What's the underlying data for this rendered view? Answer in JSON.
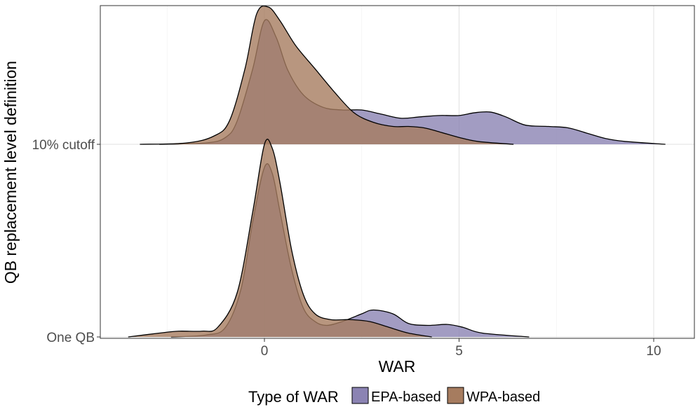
{
  "chart_data": {
    "type": "ridgeline-density",
    "title": "",
    "xlabel": "WAR",
    "ylabel": "QB replacement level definition",
    "xlim": [
      -4.1,
      11.2
    ],
    "x_ticks": [
      0,
      5,
      10
    ],
    "grid": true,
    "rows": [
      "One QB",
      "10% cutoff"
    ],
    "legend": {
      "title": "Type of WAR",
      "position": "bottom",
      "entries": [
        {
          "label": "EPA-based",
          "color": "#8b83b3"
        },
        {
          "label": "WPA-based",
          "color": "#a67c5f"
        }
      ]
    },
    "series": [
      {
        "name": "EPA-based",
        "row": "10% cutoff",
        "color": "#8b83b3",
        "points": [
          [
            -2.7,
            0
          ],
          [
            -1.5,
            0.01
          ],
          [
            -1.0,
            0.05
          ],
          [
            -0.7,
            0.17
          ],
          [
            -0.3,
            0.55
          ],
          [
            0.0,
            0.9
          ],
          [
            0.3,
            0.78
          ],
          [
            0.6,
            0.54
          ],
          [
            1.0,
            0.36
          ],
          [
            1.5,
            0.27
          ],
          [
            2.0,
            0.25
          ],
          [
            2.5,
            0.25
          ],
          [
            3.0,
            0.22
          ],
          [
            3.5,
            0.19
          ],
          [
            4.0,
            0.2
          ],
          [
            4.5,
            0.21
          ],
          [
            5.0,
            0.21
          ],
          [
            5.4,
            0.23
          ],
          [
            5.8,
            0.235
          ],
          [
            6.2,
            0.2
          ],
          [
            6.7,
            0.14
          ],
          [
            7.3,
            0.13
          ],
          [
            7.8,
            0.12
          ],
          [
            8.3,
            0.08
          ],
          [
            8.8,
            0.04
          ],
          [
            9.3,
            0.02
          ],
          [
            10.3,
            0
          ]
        ]
      },
      {
        "name": "WPA-based",
        "row": "10% cutoff",
        "color": "#a67c5f",
        "points": [
          [
            -3.2,
            0
          ],
          [
            -2.0,
            0.01
          ],
          [
            -1.3,
            0.06
          ],
          [
            -0.9,
            0.17
          ],
          [
            -0.5,
            0.55
          ],
          [
            -0.2,
            0.95
          ],
          [
            0.1,
            1.0
          ],
          [
            0.4,
            0.9
          ],
          [
            0.8,
            0.72
          ],
          [
            1.3,
            0.55
          ],
          [
            1.8,
            0.38
          ],
          [
            2.3,
            0.23
          ],
          [
            2.8,
            0.16
          ],
          [
            3.3,
            0.13
          ],
          [
            3.7,
            0.13
          ],
          [
            4.1,
            0.12
          ],
          [
            4.5,
            0.09
          ],
          [
            5.0,
            0.05
          ],
          [
            5.5,
            0.02
          ],
          [
            6.4,
            0
          ]
        ]
      },
      {
        "name": "EPA-based",
        "row": "One QB",
        "color": "#8b83b3",
        "points": [
          [
            -2.4,
            0
          ],
          [
            -1.5,
            0.01
          ],
          [
            -1.0,
            0.05
          ],
          [
            -0.6,
            0.25
          ],
          [
            -0.3,
            0.6
          ],
          [
            0.0,
            0.88
          ],
          [
            0.2,
            0.85
          ],
          [
            0.4,
            0.65
          ],
          [
            0.7,
            0.35
          ],
          [
            1.0,
            0.15
          ],
          [
            1.3,
            0.08
          ],
          [
            1.6,
            0.06
          ],
          [
            2.0,
            0.08
          ],
          [
            2.5,
            0.12
          ],
          [
            2.8,
            0.14
          ],
          [
            3.3,
            0.12
          ],
          [
            3.7,
            0.07
          ],
          [
            4.2,
            0.06
          ],
          [
            4.7,
            0.065
          ],
          [
            5.1,
            0.05
          ],
          [
            5.6,
            0.02
          ],
          [
            6.8,
            0
          ]
        ]
      },
      {
        "name": "WPA-based",
        "row": "One QB",
        "color": "#a67c5f",
        "points": [
          [
            -3.5,
            0
          ],
          [
            -2.7,
            0.02
          ],
          [
            -2.2,
            0.03
          ],
          [
            -1.6,
            0.03
          ],
          [
            -1.2,
            0.05
          ],
          [
            -0.7,
            0.23
          ],
          [
            -0.3,
            0.65
          ],
          [
            0.0,
            1.0
          ],
          [
            0.2,
            0.98
          ],
          [
            0.4,
            0.8
          ],
          [
            0.7,
            0.45
          ],
          [
            1.0,
            0.22
          ],
          [
            1.3,
            0.12
          ],
          [
            1.7,
            0.09
          ],
          [
            2.2,
            0.09
          ],
          [
            2.7,
            0.08
          ],
          [
            3.2,
            0.05
          ],
          [
            3.7,
            0.02
          ],
          [
            4.3,
            0
          ]
        ]
      }
    ]
  }
}
